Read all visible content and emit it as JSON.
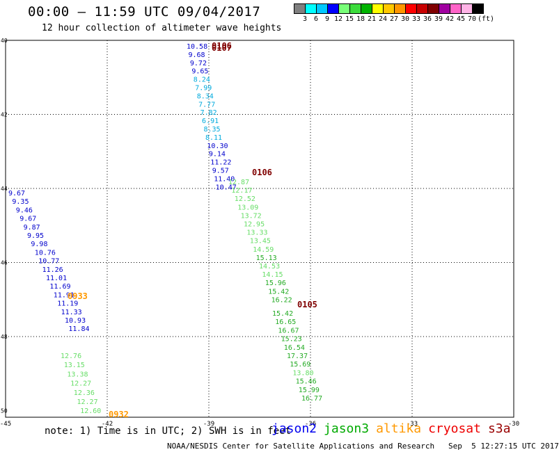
{
  "title": "00:00 – 11:59 UTC 09/04/2017",
  "subtitle": "12 hour collection of altimeter wave heights",
  "color_scale": {
    "unit": "(ft)",
    "swatches": [
      "#808080",
      "#00ffff",
      "#00c8ff",
      "#0000ff",
      "#78ff78",
      "#3cdc3c",
      "#00b400",
      "#ffff00",
      "#ffc800",
      "#ff9600",
      "#ff0000",
      "#c80000",
      "#800000",
      "#a000a0",
      "#ff64c8",
      "#ffb4e6",
      "#000000"
    ],
    "labels": [
      "3",
      "6",
      "9",
      "12",
      "15",
      "18",
      "21",
      "24",
      "27",
      "30",
      "33",
      "36",
      "39",
      "42",
      "45",
      "70"
    ]
  },
  "map": {
    "lat_labels": [
      "40",
      "42",
      "44",
      "46",
      "48",
      "50"
    ],
    "lon_labels": [
      "-45",
      "-42",
      "-39",
      "-36",
      "-33",
      "-30"
    ]
  },
  "tracks": [
    {
      "id": "track-0106",
      "time_label": "0106",
      "time_color": "#800000",
      "points": [
        {
          "v": "10.58",
          "c": "#0000cc"
        },
        {
          "v": "9.68",
          "c": "#0000cc"
        },
        {
          "v": "9.72",
          "c": "#0000cc"
        },
        {
          "v": "9.65",
          "c": "#0000cc"
        },
        {
          "v": "8.24",
          "c": "#00aadd"
        },
        {
          "v": "7.99",
          "c": "#00aadd"
        },
        {
          "v": "8.34",
          "c": "#00aadd"
        },
        {
          "v": "7.77",
          "c": "#00aadd"
        },
        {
          "v": "7.82",
          "c": "#00aadd"
        },
        {
          "v": "6.91",
          "c": "#00aadd"
        },
        {
          "v": "8.35",
          "c": "#00aadd"
        },
        {
          "v": "8.11",
          "c": "#00aadd"
        },
        {
          "v": "10.30",
          "c": "#0000cc"
        },
        {
          "v": "9.14",
          "c": "#0000cc"
        },
        {
          "v": "11.22",
          "c": "#0000cc"
        },
        {
          "v": "9.57",
          "c": "#0000cc"
        },
        {
          "v": "11.40",
          "c": "#0000cc"
        },
        {
          "v": "10.47",
          "c": "#0000cc"
        },
        {
          "v": "12.87",
          "c": "#66dd66"
        },
        {
          "v": "12.17",
          "c": "#66dd66"
        },
        {
          "v": "12.52",
          "c": "#66dd66"
        },
        {
          "v": "13.09",
          "c": "#66dd66"
        },
        {
          "v": "13.72",
          "c": "#66dd66"
        },
        {
          "v": "12.95",
          "c": "#66dd66"
        },
        {
          "v": "13.33",
          "c": "#66dd66"
        },
        {
          "v": "13.45",
          "c": "#66dd66"
        },
        {
          "v": "14.59",
          "c": "#66dd66"
        },
        {
          "v": "15.13",
          "c": "#22aa22"
        },
        {
          "v": "14.53",
          "c": "#66dd66"
        },
        {
          "v": "14.15",
          "c": "#66dd66"
        },
        {
          "v": "15.96",
          "c": "#22aa22"
        },
        {
          "v": "15.42",
          "c": "#22aa22"
        },
        {
          "v": "16.22",
          "c": "#22aa22"
        }
      ],
      "top_labels": [
        "0106",
        "0107"
      ]
    },
    {
      "id": "track-0105",
      "time_label": "0105",
      "time_color": "#800000",
      "points": [
        {
          "v": "15.42",
          "c": "#22aa22"
        },
        {
          "v": "16.65",
          "c": "#22aa22"
        },
        {
          "v": "16.67",
          "c": "#22aa22"
        },
        {
          "v": "15.23",
          "c": "#22aa22"
        },
        {
          "v": "16.54",
          "c": "#22aa22"
        },
        {
          "v": "17.37",
          "c": "#22aa22"
        },
        {
          "v": "15.69",
          "c": "#22aa22"
        },
        {
          "v": "13.80",
          "c": "#66dd66"
        },
        {
          "v": "15.46",
          "c": "#22aa22"
        },
        {
          "v": "15.99",
          "c": "#22aa22"
        },
        {
          "v": "16.77",
          "c": "#22aa22"
        }
      ]
    },
    {
      "id": "track-0933",
      "time_label": "0933",
      "time_color": "#ff9900",
      "points": [
        {
          "v": "9.67",
          "c": "#0000cc"
        },
        {
          "v": "9.35",
          "c": "#0000cc"
        },
        {
          "v": "9.46",
          "c": "#0000cc"
        },
        {
          "v": "9.67",
          "c": "#0000cc"
        },
        {
          "v": "9.87",
          "c": "#0000cc"
        },
        {
          "v": "9.95",
          "c": "#0000cc"
        },
        {
          "v": "9.98",
          "c": "#0000cc"
        },
        {
          "v": "10.76",
          "c": "#0000cc"
        },
        {
          "v": "10.77",
          "c": "#0000cc"
        },
        {
          "v": "11.26",
          "c": "#0000cc"
        },
        {
          "v": "11.01",
          "c": "#0000cc"
        },
        {
          "v": "11.69",
          "c": "#0000cc"
        },
        {
          "v": "11.91",
          "c": "#0000cc"
        },
        {
          "v": "11.19",
          "c": "#0000cc"
        },
        {
          "v": "11.33",
          "c": "#0000cc"
        },
        {
          "v": "10.93",
          "c": "#0000cc"
        },
        {
          "v": "11.84",
          "c": "#0000cc"
        }
      ]
    },
    {
      "id": "track-0932",
      "time_label": "0932",
      "time_color": "#ff9900",
      "points": [
        {
          "v": "12.76",
          "c": "#66dd66"
        },
        {
          "v": "13.15",
          "c": "#66dd66"
        },
        {
          "v": "13.38",
          "c": "#66dd66"
        },
        {
          "v": "12.27",
          "c": "#66dd66"
        },
        {
          "v": "12.36",
          "c": "#66dd66"
        },
        {
          "v": "12.27",
          "c": "#66dd66"
        },
        {
          "v": "12.60",
          "c": "#66dd66"
        }
      ]
    }
  ],
  "note": "note: 1) Time is in UTC; 2) SWH is in feet",
  "satellites": [
    {
      "name": "jason2",
      "color": "#0000ee"
    },
    {
      "name": "jason3",
      "color": "#00aa00"
    },
    {
      "name": "altika",
      "color": "#ff9900"
    },
    {
      "name": "cryosat",
      "color": "#ee0000"
    },
    {
      "name": "s3a",
      "color": "#990000"
    }
  ],
  "footer": "NOAA/NESDIS Center for Satellite Applications and Research   Sep  5 12:27:15 UTC 2017"
}
